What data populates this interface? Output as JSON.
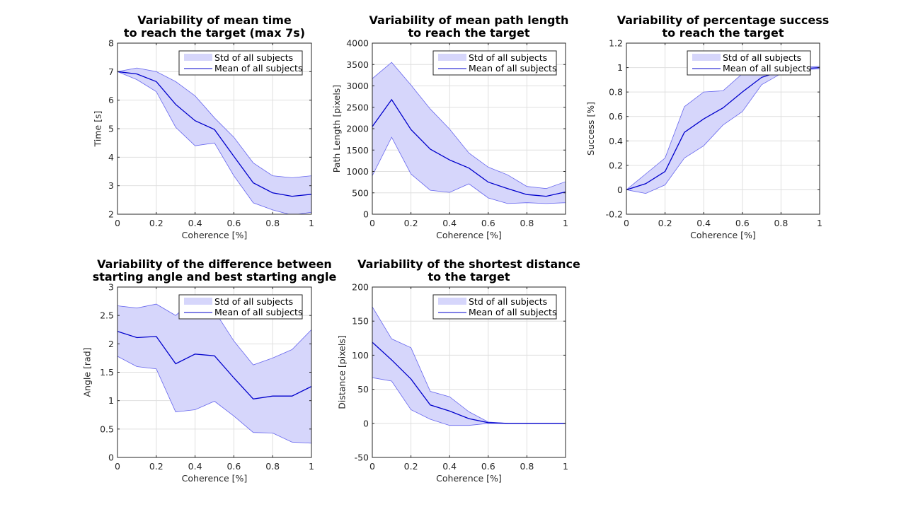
{
  "colors": {
    "band_fill": "#d6d6fb",
    "band_edge": "#6666ee",
    "mean_line": "#0000cc"
  },
  "chart_data": [
    {
      "type": "area",
      "title": [
        "Variability of mean time",
        "to reach the target (max 7s)"
      ],
      "xlabel": "Coherence [%]",
      "ylabel": "Time [s]",
      "xlim": [
        0,
        1
      ],
      "ylim": [
        2,
        8
      ],
      "xticks": [
        "0",
        "0.2",
        "0.4",
        "0.6",
        "0.8",
        "1"
      ],
      "yticks": [
        "2",
        "3",
        "4",
        "5",
        "6",
        "7",
        "8"
      ],
      "grid": true,
      "legend": {
        "position": "top-right",
        "entries": [
          "Std of all subjects",
          "Mean of all subjects"
        ]
      },
      "x": [
        0,
        0.1,
        0.2,
        0.3,
        0.4,
        0.5,
        0.6,
        0.7,
        0.8,
        0.9,
        1
      ],
      "series": [
        {
          "name": "Mean of all subjects",
          "values": [
            7.0,
            6.92,
            6.65,
            5.85,
            5.28,
            4.97,
            4.03,
            3.1,
            2.75,
            2.63,
            2.7
          ]
        },
        {
          "name": "Std of all subjects",
          "upper": [
            7.0,
            7.13,
            7.0,
            6.65,
            6.15,
            5.38,
            4.7,
            3.8,
            3.35,
            3.28,
            3.35
          ],
          "lower": [
            7.0,
            6.72,
            6.3,
            5.05,
            4.4,
            4.5,
            3.35,
            2.4,
            2.15,
            1.97,
            2.07
          ]
        }
      ]
    },
    {
      "type": "area",
      "title": [
        "Variability of mean path length",
        "to reach the target"
      ],
      "xlabel": "Coherence [%]",
      "ylabel": "Path Length [pixels]",
      "xlim": [
        0,
        1
      ],
      "ylim": [
        0,
        4000
      ],
      "xticks": [
        "0",
        "0.2",
        "0.4",
        "0.6",
        "0.8",
        "1"
      ],
      "yticks": [
        "0",
        "500",
        "1000",
        "1500",
        "2000",
        "2500",
        "3000",
        "3500",
        "4000"
      ],
      "grid": true,
      "legend": {
        "position": "top-right",
        "entries": [
          "Std of all subjects",
          "Mean of all subjects"
        ]
      },
      "x": [
        0,
        0.1,
        0.2,
        0.3,
        0.4,
        0.5,
        0.6,
        0.7,
        0.8,
        0.9,
        1
      ],
      "series": [
        {
          "name": "Mean of all subjects",
          "values": [
            2050,
            2680,
            1980,
            1520,
            1270,
            1080,
            750,
            600,
            460,
            420,
            520
          ]
        },
        {
          "name": "Std of all subjects",
          "upper": [
            3170,
            3550,
            3020,
            2460,
            1990,
            1430,
            1100,
            920,
            650,
            600,
            760
          ],
          "lower": [
            900,
            1800,
            940,
            560,
            510,
            710,
            380,
            250,
            270,
            250,
            270
          ]
        }
      ]
    },
    {
      "type": "area",
      "title": [
        "Variability of percentage success",
        "to reach the target"
      ],
      "xlabel": "Coherence [%]",
      "ylabel": "Success [%]",
      "xlim": [
        0,
        1
      ],
      "ylim": [
        -0.2,
        1.2
      ],
      "xticks": [
        "0",
        "0.2",
        "0.4",
        "0.6",
        "0.8",
        "1"
      ],
      "yticks": [
        "-0.2",
        "0",
        "0.2",
        "0.4",
        "0.6",
        "0.8",
        "1",
        "1.2"
      ],
      "grid": true,
      "legend": {
        "position": "top-right",
        "entries": [
          "Std of all subjects",
          "Mean of all subjects"
        ]
      },
      "x": [
        0,
        0.1,
        0.2,
        0.3,
        0.4,
        0.5,
        0.6,
        0.7,
        0.8,
        0.9,
        1
      ],
      "series": [
        {
          "name": "Mean of all subjects",
          "values": [
            0,
            0.05,
            0.15,
            0.47,
            0.58,
            0.67,
            0.8,
            0.92,
            0.97,
            0.99,
            1.0
          ]
        },
        {
          "name": "Std of all subjects",
          "upper": [
            0,
            0.13,
            0.26,
            0.68,
            0.8,
            0.81,
            0.95,
            0.99,
            0.99,
            1.0,
            1.01
          ],
          "lower": [
            0,
            -0.03,
            0.04,
            0.26,
            0.36,
            0.53,
            0.64,
            0.86,
            0.95,
            0.98,
            0.99
          ]
        }
      ]
    },
    {
      "type": "area",
      "title": [
        "Variability of the difference between",
        "starting angle and best starting angle"
      ],
      "xlabel": "Coherence [%]",
      "ylabel": "Angle [rad]",
      "xlim": [
        0,
        1
      ],
      "ylim": [
        0,
        3
      ],
      "xticks": [
        "0",
        "0.2",
        "0.4",
        "0.6",
        "0.8",
        "1"
      ],
      "yticks": [
        "0",
        "0.5",
        "1",
        "1.5",
        "2",
        "2.5",
        "3"
      ],
      "grid": true,
      "legend": {
        "position": "top-right",
        "entries": [
          "Std of all subjects",
          "Mean of all subjects"
        ]
      },
      "x": [
        0,
        0.1,
        0.2,
        0.3,
        0.4,
        0.5,
        0.6,
        0.7,
        0.8,
        0.9,
        1
      ],
      "series": [
        {
          "name": "Mean of all subjects",
          "values": [
            2.22,
            2.11,
            2.13,
            1.65,
            1.82,
            1.79,
            1.4,
            1.03,
            1.08,
            1.08,
            1.25
          ]
        },
        {
          "name": "Std of all subjects",
          "upper": [
            2.67,
            2.63,
            2.7,
            2.5,
            2.8,
            2.58,
            2.05,
            1.63,
            1.75,
            1.9,
            2.25
          ],
          "lower": [
            1.78,
            1.6,
            1.56,
            0.8,
            0.84,
            0.99,
            0.73,
            0.44,
            0.43,
            0.27,
            0.25
          ]
        }
      ]
    },
    {
      "type": "area",
      "title": [
        "Variability of the shortest distance",
        "to the target"
      ],
      "xlabel": "Coherence [%]",
      "ylabel": "Distance [pixels]",
      "xlim": [
        0,
        1
      ],
      "ylim": [
        -50,
        200
      ],
      "xticks": [
        "0",
        "0.2",
        "0.4",
        "0.6",
        "0.8",
        "1"
      ],
      "yticks": [
        "-50",
        "0",
        "50",
        "100",
        "150",
        "200"
      ],
      "grid": true,
      "legend": {
        "position": "top-right",
        "entries": [
          "Std of all subjects",
          "Mean of all subjects"
        ]
      },
      "x": [
        0,
        0.1,
        0.2,
        0.3,
        0.4,
        0.5,
        0.6,
        0.7,
        0.8,
        0.9,
        1
      ],
      "series": [
        {
          "name": "Mean of all subjects",
          "values": [
            119,
            93,
            65,
            27,
            18,
            7,
            1,
            0,
            0,
            0,
            0
          ]
        },
        {
          "name": "Std of all subjects",
          "upper": [
            171,
            124,
            111,
            47,
            39,
            17,
            2,
            0,
            0,
            0,
            0
          ],
          "lower": [
            67,
            62,
            20,
            6,
            -3,
            -3,
            0,
            0,
            0,
            0,
            0
          ]
        }
      ]
    }
  ]
}
